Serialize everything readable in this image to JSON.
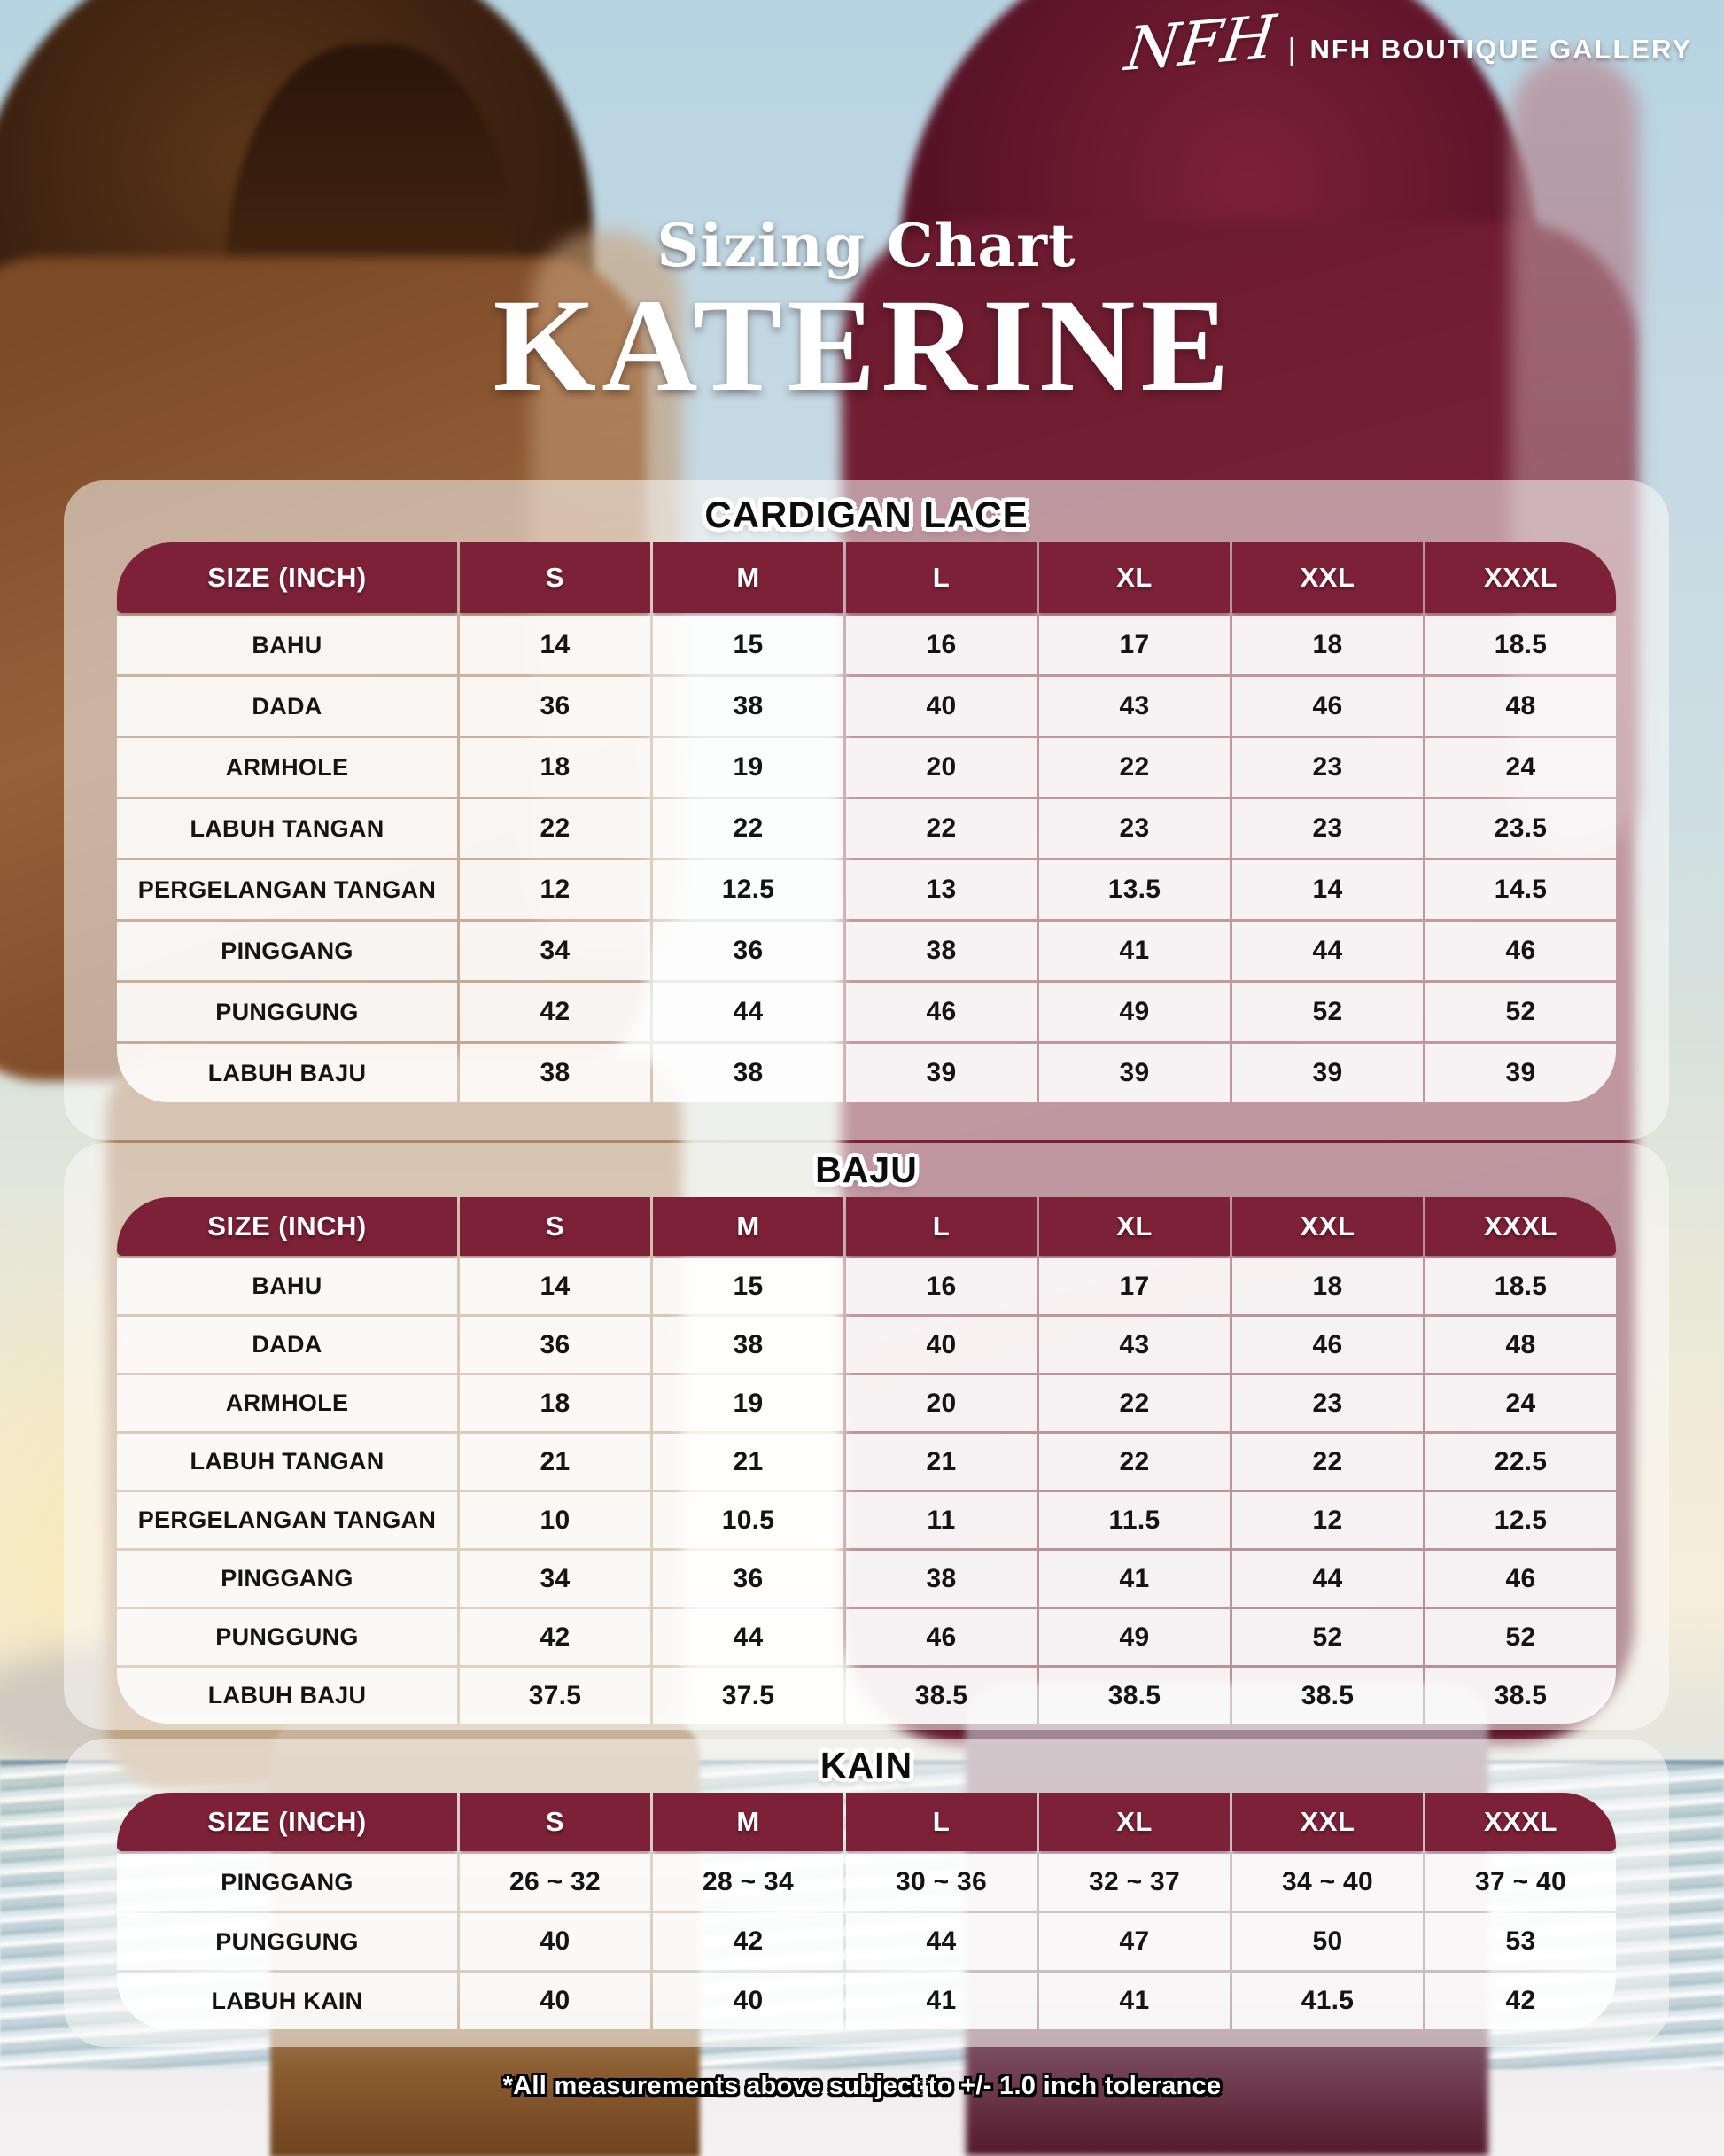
{
  "brand": {
    "logo_script": "NFH",
    "separator": "|",
    "name": "NFH BOUTIQUE GALLERY"
  },
  "title": {
    "subtitle": "Sizing Chart",
    "product": "KATERINE"
  },
  "colors": {
    "header_maroon": "#7d2139",
    "heading_text": "#0d0d0d",
    "table_text": "#141414"
  },
  "tables": [
    {
      "heading": "CARDIGAN LACE",
      "columns": [
        "SIZE (INCH)",
        "S",
        "M",
        "L",
        "XL",
        "XXL",
        "XXXL"
      ],
      "rows": [
        {
          "label": "BAHU",
          "values": [
            "14",
            "15",
            "16",
            "17",
            "18",
            "18.5"
          ]
        },
        {
          "label": "DADA",
          "values": [
            "36",
            "38",
            "40",
            "43",
            "46",
            "48"
          ]
        },
        {
          "label": "ARMHOLE",
          "values": [
            "18",
            "19",
            "20",
            "22",
            "23",
            "24"
          ]
        },
        {
          "label": "LABUH TANGAN",
          "values": [
            "22",
            "22",
            "22",
            "23",
            "23",
            "23.5"
          ]
        },
        {
          "label": "PERGELANGAN TANGAN",
          "values": [
            "12",
            "12.5",
            "13",
            "13.5",
            "14",
            "14.5"
          ]
        },
        {
          "label": "PINGGANG",
          "values": [
            "34",
            "36",
            "38",
            "41",
            "44",
            "46"
          ]
        },
        {
          "label": "PUNGGUNG",
          "values": [
            "42",
            "44",
            "46",
            "49",
            "52",
            "52"
          ]
        },
        {
          "label": "LABUH BAJU",
          "values": [
            "38",
            "38",
            "39",
            "39",
            "39",
            "39"
          ]
        }
      ]
    },
    {
      "heading": "BAJU",
      "columns": [
        "SIZE (INCH)",
        "S",
        "M",
        "L",
        "XL",
        "XXL",
        "XXXL"
      ],
      "rows": [
        {
          "label": "BAHU",
          "values": [
            "14",
            "15",
            "16",
            "17",
            "18",
            "18.5"
          ]
        },
        {
          "label": "DADA",
          "values": [
            "36",
            "38",
            "40",
            "43",
            "46",
            "48"
          ]
        },
        {
          "label": "ARMHOLE",
          "values": [
            "18",
            "19",
            "20",
            "22",
            "23",
            "24"
          ]
        },
        {
          "label": "LABUH TANGAN",
          "values": [
            "21",
            "21",
            "21",
            "22",
            "22",
            "22.5"
          ]
        },
        {
          "label": "PERGELANGAN TANGAN",
          "values": [
            "10",
            "10.5",
            "11",
            "11.5",
            "12",
            "12.5"
          ]
        },
        {
          "label": "PINGGANG",
          "values": [
            "34",
            "36",
            "38",
            "41",
            "44",
            "46"
          ]
        },
        {
          "label": "PUNGGUNG",
          "values": [
            "42",
            "44",
            "46",
            "49",
            "52",
            "52"
          ]
        },
        {
          "label": "LABUH BAJU",
          "values": [
            "37.5",
            "37.5",
            "38.5",
            "38.5",
            "38.5",
            "38.5"
          ]
        }
      ]
    },
    {
      "heading": "KAIN",
      "columns": [
        "SIZE (INCH)",
        "S",
        "M",
        "L",
        "XL",
        "XXL",
        "XXXL"
      ],
      "rows": [
        {
          "label": "PINGGANG",
          "values": [
            "26 ~ 32",
            "28 ~ 34",
            "30 ~ 36",
            "32 ~ 37",
            "34 ~ 40",
            "37 ~ 40"
          ]
        },
        {
          "label": "PUNGGUNG",
          "values": [
            "40",
            "42",
            "44",
            "47",
            "50",
            "53"
          ]
        },
        {
          "label": "LABUH KAIN",
          "values": [
            "40",
            "40",
            "41",
            "41",
            "41.5",
            "42"
          ]
        }
      ]
    }
  ],
  "footer": {
    "note": "*All measurements above subject to +/- 1.0 inch tolerance"
  }
}
